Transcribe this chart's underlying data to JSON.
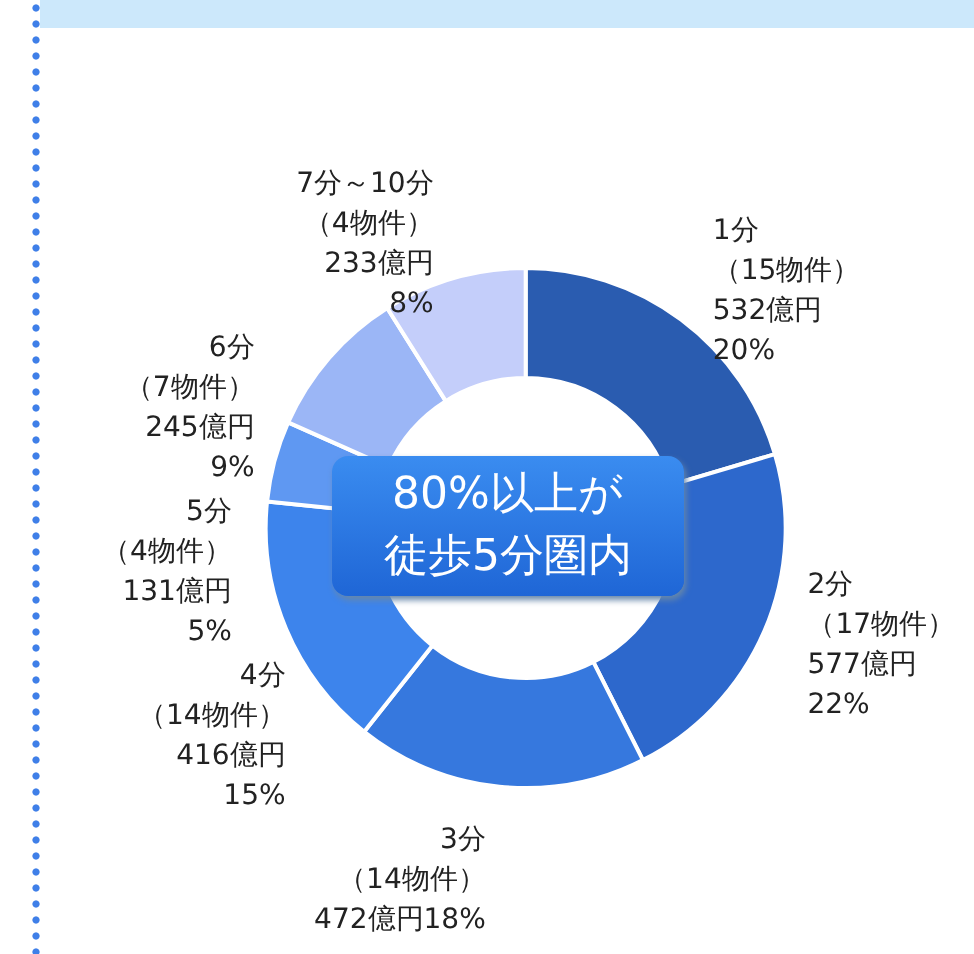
{
  "chart_data": {
    "type": "donut",
    "categories": [
      "1分",
      "2分",
      "3分",
      "4分",
      "5分",
      "6分",
      "7分～10分"
    ],
    "values": [
      532,
      577,
      472,
      416,
      131,
      245,
      233
    ],
    "value_labels": [
      "（15物件）\n532億円\n20%",
      "（17物件）\n577億円\n22%",
      "（14物件）\n472億円18%",
      "（14物件）\n416億円\n15%",
      "（4物件）\n131億円\n5%",
      "（7物件）\n245億円\n9%",
      "（4物件）\n233億円\n8%"
    ],
    "colors": [
      "#2a5cb0",
      "#2d68cc",
      "#3678de",
      "#3d84ec",
      "#5f98f2",
      "#9bb6f6",
      "#c4cefa"
    ],
    "annotations": [
      "80%以上が",
      "徒歩5分圏内"
    ],
    "legend": false
  }
}
